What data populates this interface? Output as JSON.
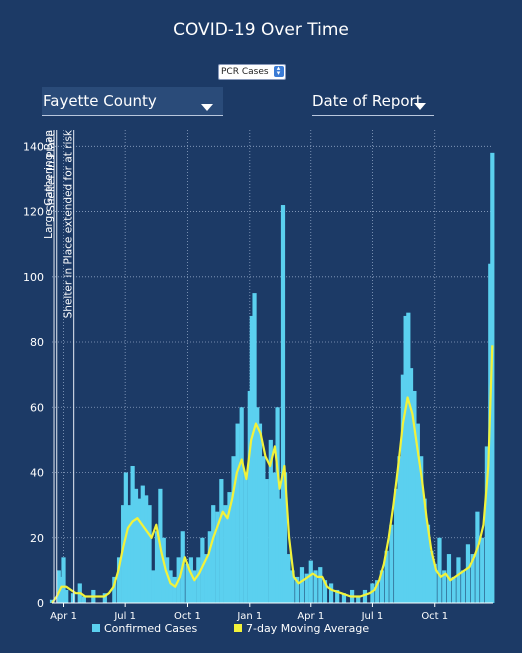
{
  "title": "COVID-19 Over Time",
  "metric_select": {
    "value": "PCR Cases"
  },
  "county_select": {
    "value": "Fayette County"
  },
  "date_select": {
    "value": "Date of Report"
  },
  "legend": {
    "cases": "Confirmed Cases",
    "average": "7-day Moving Average"
  },
  "colors": {
    "background": "#1c3a66",
    "bars": "#5bd0ef",
    "average": "#f2f23a",
    "grid": "#8ea3c3"
  },
  "chart_data": {
    "type": "bar",
    "x_unit": "date",
    "x_range": [
      "2020-03-15",
      "2021-12-26"
    ],
    "ylim": [
      0,
      145
    ],
    "yticks": [
      0,
      20,
      40,
      60,
      80,
      100,
      120,
      140
    ],
    "xticks": [
      {
        "date": "2020-04-01",
        "label": "Apr 1"
      },
      {
        "date": "2020-07-01",
        "label": "Jul 1"
      },
      {
        "date": "2020-10-01",
        "label": "Oct 1"
      },
      {
        "date": "2021-01-01",
        "label": "Jan 1"
      },
      {
        "date": "2021-04-01",
        "label": "Apr 1"
      },
      {
        "date": "2021-07-01",
        "label": "Jul 1"
      },
      {
        "date": "2021-10-01",
        "label": "Oct 1"
      }
    ],
    "grid": true,
    "series": [
      {
        "name": "Confirmed Cases",
        "kind": "bar",
        "points": [
          [
            "2020-03-15",
            1
          ],
          [
            "2020-03-25",
            10
          ],
          [
            "2020-03-29",
            8
          ],
          [
            "2020-04-01",
            14
          ],
          [
            "2020-04-05",
            4
          ],
          [
            "2020-04-15",
            3
          ],
          [
            "2020-04-25",
            6
          ],
          [
            "2020-05-01",
            2
          ],
          [
            "2020-05-15",
            4
          ],
          [
            "2020-06-01",
            3
          ],
          [
            "2020-06-15",
            8
          ],
          [
            "2020-06-22",
            14
          ],
          [
            "2020-06-28",
            30
          ],
          [
            "2020-07-02",
            40
          ],
          [
            "2020-07-07",
            30
          ],
          [
            "2020-07-12",
            42
          ],
          [
            "2020-07-17",
            35
          ],
          [
            "2020-07-22",
            32
          ],
          [
            "2020-07-27",
            36
          ],
          [
            "2020-08-01",
            33
          ],
          [
            "2020-08-06",
            30
          ],
          [
            "2020-08-12",
            10
          ],
          [
            "2020-08-17",
            22
          ],
          [
            "2020-08-22",
            35
          ],
          [
            "2020-08-27",
            20
          ],
          [
            "2020-09-01",
            14
          ],
          [
            "2020-09-06",
            10
          ],
          [
            "2020-09-12",
            8
          ],
          [
            "2020-09-18",
            14
          ],
          [
            "2020-09-24",
            22
          ],
          [
            "2020-10-01",
            12
          ],
          [
            "2020-10-06",
            14
          ],
          [
            "2020-10-11",
            10
          ],
          [
            "2020-10-17",
            14
          ],
          [
            "2020-10-23",
            20
          ],
          [
            "2020-10-29",
            15
          ],
          [
            "2020-11-03",
            22
          ],
          [
            "2020-11-08",
            30
          ],
          [
            "2020-11-14",
            28
          ],
          [
            "2020-11-20",
            38
          ],
          [
            "2020-11-26",
            30
          ],
          [
            "2020-12-02",
            34
          ],
          [
            "2020-12-08",
            45
          ],
          [
            "2020-12-14",
            55
          ],
          [
            "2020-12-20",
            60
          ],
          [
            "2020-12-26",
            40
          ],
          [
            "2021-01-01",
            65
          ],
          [
            "2021-01-04",
            88
          ],
          [
            "2021-01-08",
            95
          ],
          [
            "2021-01-12",
            60
          ],
          [
            "2021-01-16",
            55
          ],
          [
            "2021-01-21",
            45
          ],
          [
            "2021-01-26",
            38
          ],
          [
            "2021-02-01",
            50
          ],
          [
            "2021-02-06",
            40
          ],
          [
            "2021-02-11",
            60
          ],
          [
            "2021-02-16",
            32
          ],
          [
            "2021-02-19",
            122
          ],
          [
            "2021-02-22",
            40
          ],
          [
            "2021-02-27",
            15
          ],
          [
            "2021-03-05",
            10
          ],
          [
            "2021-03-12",
            8
          ],
          [
            "2021-03-19",
            11
          ],
          [
            "2021-03-26",
            9
          ],
          [
            "2021-04-01",
            13
          ],
          [
            "2021-04-08",
            10
          ],
          [
            "2021-04-15",
            11
          ],
          [
            "2021-04-22",
            7
          ],
          [
            "2021-05-01",
            6
          ],
          [
            "2021-05-10",
            4
          ],
          [
            "2021-05-20",
            3
          ],
          [
            "2021-06-01",
            4
          ],
          [
            "2021-06-10",
            2
          ],
          [
            "2021-06-20",
            4
          ],
          [
            "2021-07-01",
            6
          ],
          [
            "2021-07-08",
            7
          ],
          [
            "2021-07-15",
            10
          ],
          [
            "2021-07-22",
            16
          ],
          [
            "2021-07-29",
            24
          ],
          [
            "2021-08-05",
            35
          ],
          [
            "2021-08-10",
            45
          ],
          [
            "2021-08-15",
            70
          ],
          [
            "2021-08-19",
            88
          ],
          [
            "2021-08-23",
            89
          ],
          [
            "2021-08-27",
            72
          ],
          [
            "2021-09-01",
            65
          ],
          [
            "2021-09-06",
            55
          ],
          [
            "2021-09-11",
            45
          ],
          [
            "2021-09-16",
            32
          ],
          [
            "2021-09-21",
            24
          ],
          [
            "2021-09-26",
            16
          ],
          [
            "2021-10-01",
            12
          ],
          [
            "2021-10-08",
            20
          ],
          [
            "2021-10-15",
            10
          ],
          [
            "2021-10-22",
            15
          ],
          [
            "2021-10-29",
            8
          ],
          [
            "2021-11-05",
            14
          ],
          [
            "2021-11-12",
            10
          ],
          [
            "2021-11-19",
            18
          ],
          [
            "2021-11-26",
            15
          ],
          [
            "2021-12-03",
            28
          ],
          [
            "2021-12-10",
            20
          ],
          [
            "2021-12-17",
            48
          ],
          [
            "2021-12-22",
            104
          ],
          [
            "2021-12-25",
            138
          ]
        ]
      },
      {
        "name": "7-day Moving Average",
        "kind": "line",
        "points": [
          [
            "2020-03-15",
            0
          ],
          [
            "2020-03-22",
            2
          ],
          [
            "2020-03-29",
            5
          ],
          [
            "2020-04-05",
            5
          ],
          [
            "2020-04-12",
            4
          ],
          [
            "2020-04-19",
            3
          ],
          [
            "2020-04-26",
            3
          ],
          [
            "2020-05-03",
            2
          ],
          [
            "2020-05-17",
            2
          ],
          [
            "2020-05-31",
            2
          ],
          [
            "2020-06-07",
            3
          ],
          [
            "2020-06-14",
            5
          ],
          [
            "2020-06-21",
            10
          ],
          [
            "2020-06-28",
            17
          ],
          [
            "2020-07-05",
            23
          ],
          [
            "2020-07-12",
            25
          ],
          [
            "2020-07-19",
            26
          ],
          [
            "2020-07-26",
            24
          ],
          [
            "2020-08-02",
            22
          ],
          [
            "2020-08-09",
            20
          ],
          [
            "2020-08-16",
            24
          ],
          [
            "2020-08-23",
            16
          ],
          [
            "2020-08-30",
            10
          ],
          [
            "2020-09-06",
            6
          ],
          [
            "2020-09-13",
            5
          ],
          [
            "2020-09-20",
            8
          ],
          [
            "2020-09-27",
            14
          ],
          [
            "2020-10-04",
            10
          ],
          [
            "2020-10-11",
            7
          ],
          [
            "2020-10-18",
            9
          ],
          [
            "2020-10-25",
            12
          ],
          [
            "2020-11-01",
            15
          ],
          [
            "2020-11-08",
            20
          ],
          [
            "2020-11-15",
            24
          ],
          [
            "2020-11-22",
            28
          ],
          [
            "2020-11-29",
            26
          ],
          [
            "2020-12-06",
            32
          ],
          [
            "2020-12-13",
            40
          ],
          [
            "2020-12-20",
            44
          ],
          [
            "2020-12-27",
            38
          ],
          [
            "2021-01-03",
            50
          ],
          [
            "2021-01-10",
            55
          ],
          [
            "2021-01-17",
            52
          ],
          [
            "2021-01-24",
            45
          ],
          [
            "2021-01-31",
            42
          ],
          [
            "2021-02-07",
            48
          ],
          [
            "2021-02-14",
            35
          ],
          [
            "2021-02-21",
            42
          ],
          [
            "2021-02-28",
            20
          ],
          [
            "2021-03-07",
            8
          ],
          [
            "2021-03-14",
            6
          ],
          [
            "2021-03-21",
            7
          ],
          [
            "2021-03-28",
            8
          ],
          [
            "2021-04-04",
            9
          ],
          [
            "2021-04-11",
            8
          ],
          [
            "2021-04-18",
            8
          ],
          [
            "2021-04-25",
            5
          ],
          [
            "2021-05-02",
            4
          ],
          [
            "2021-05-16",
            3
          ],
          [
            "2021-05-30",
            2
          ],
          [
            "2021-06-13",
            2
          ],
          [
            "2021-06-27",
            3
          ],
          [
            "2021-07-04",
            4
          ],
          [
            "2021-07-11",
            7
          ],
          [
            "2021-07-18",
            12
          ],
          [
            "2021-07-25",
            20
          ],
          [
            "2021-08-01",
            30
          ],
          [
            "2021-08-08",
            42
          ],
          [
            "2021-08-15",
            55
          ],
          [
            "2021-08-22",
            63
          ],
          [
            "2021-08-29",
            58
          ],
          [
            "2021-09-05",
            48
          ],
          [
            "2021-09-12",
            38
          ],
          [
            "2021-09-19",
            26
          ],
          [
            "2021-09-26",
            16
          ],
          [
            "2021-10-03",
            10
          ],
          [
            "2021-10-10",
            8
          ],
          [
            "2021-10-17",
            9
          ],
          [
            "2021-10-24",
            7
          ],
          [
            "2021-10-31",
            8
          ],
          [
            "2021-11-07",
            9
          ],
          [
            "2021-11-14",
            10
          ],
          [
            "2021-11-21",
            11
          ],
          [
            "2021-11-28",
            14
          ],
          [
            "2021-12-05",
            18
          ],
          [
            "2021-12-12",
            24
          ],
          [
            "2021-12-19",
            42
          ],
          [
            "2021-12-25",
            79
          ]
        ]
      }
    ],
    "annotations": [
      {
        "date": "2020-03-18",
        "label": "Large Gathering Ban"
      },
      {
        "date": "2020-03-22",
        "label": "Shelter In Place"
      },
      {
        "date": "2020-04-16",
        "label": "Shelter in Place extended for at risk"
      }
    ]
  }
}
